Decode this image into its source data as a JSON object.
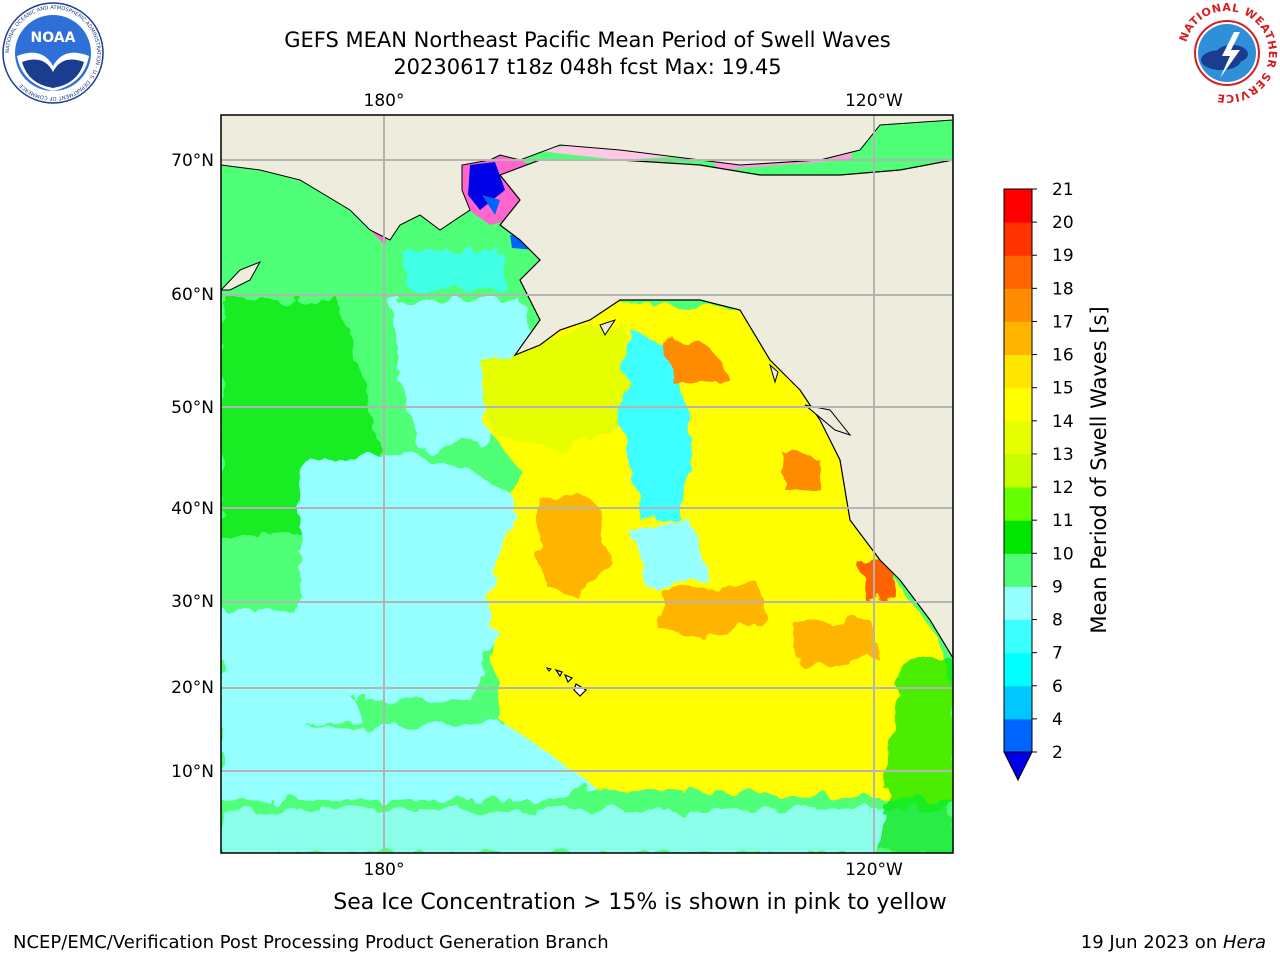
{
  "title": {
    "line1": "GEFS MEAN Northeast Pacific Mean Period of Swell Waves",
    "line2": "20230617 t18z 048h fcst   Max: 19.45"
  },
  "map": {
    "lon_labels": [
      "180°",
      "120°W"
    ],
    "lat_labels": [
      "70°N",
      "60°N",
      "50°N",
      "40°N",
      "30°N",
      "20°N",
      "10°N"
    ],
    "land_color": "#eeecdc",
    "grid_color": "#b4b4b4"
  },
  "colorbar": {
    "label": "Mean Period of Swell Waves [s]",
    "ticks": [
      "2",
      "4",
      "6",
      "7",
      "8",
      "9",
      "10",
      "11",
      "12",
      "13",
      "14",
      "15",
      "16",
      "17",
      "18",
      "19",
      "20",
      "21"
    ],
    "colors": [
      "#0000e6",
      "#0064ff",
      "#00c8ff",
      "#00ffff",
      "#3cffff",
      "#96ffff",
      "#50ff78",
      "#00e600",
      "#64ff00",
      "#c8ff00",
      "#e6ff00",
      "#ffff00",
      "#ffe600",
      "#ffb400",
      "#ff8c00",
      "#ff6400",
      "#ff3200",
      "#ff0000"
    ]
  },
  "note": "Sea Ice Concentration > 15% is shown in pink to yellow",
  "footer": {
    "left": "NCEP/EMC/Verification Post Processing Product Generation Branch",
    "date": "19 Jun 2023 on ",
    "host": "Hera"
  },
  "logos": {
    "noaa": "NOAA",
    "noaa_ring": "NATIONAL OCEANIC AND ATMOSPHERIC ADMINISTRATION · U.S. DEPARTMENT OF COMMERCE",
    "nws_ring": "NATIONAL WEATHER SERVICE"
  }
}
